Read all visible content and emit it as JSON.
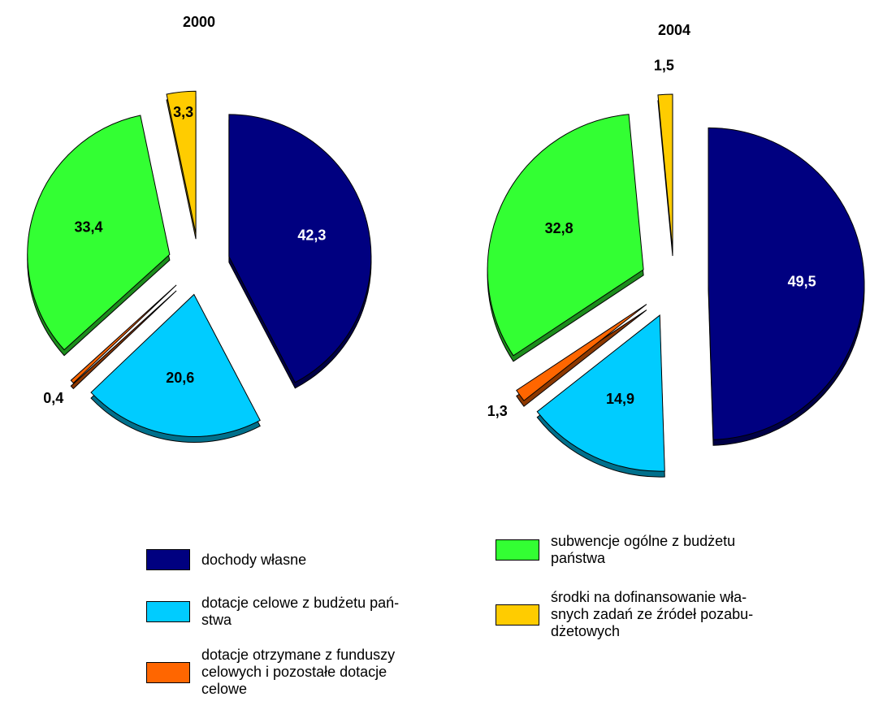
{
  "legend": {
    "items": [
      {
        "name": "dochody własne",
        "color": "#000080"
      },
      {
        "name": "dotacje celowe z budżetu pań-\nstwa",
        "color": "#00ccff"
      },
      {
        "name": "dotacje otrzymane z funduszy\ncelowych i pozostałe dotacje\ncelowe",
        "color": "#ff6600"
      },
      {
        "name": "subwencje ogólne z budżetu\npaństwa",
        "color": "#33ff33"
      },
      {
        "name": "środki na dofinansowanie wła-\nsnych zadań ze źródeł pozabu-\ndżetowych",
        "color": "#ffcc00"
      }
    ]
  },
  "chart_data": [
    {
      "type": "pie",
      "title": "2000",
      "values": [
        42.3,
        20.6,
        0.4,
        33.4,
        3.3
      ],
      "value_labels": [
        "42,3",
        "20,6",
        "0,4",
        "33,4",
        "3,3"
      ]
    },
    {
      "type": "pie",
      "title": "2004",
      "values": [
        49.5,
        14.9,
        1.3,
        32.8,
        1.5
      ],
      "value_labels": [
        "49,5",
        "14,9",
        "1,3",
        "32,8",
        "1,5"
      ]
    }
  ]
}
